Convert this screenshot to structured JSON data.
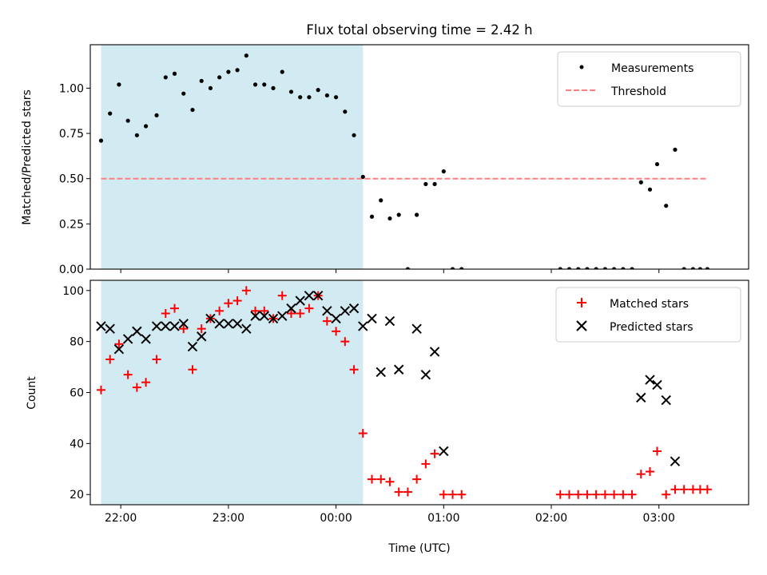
{
  "chart_data": [
    {
      "type": "scatter",
      "title": "Flux total observing time = 2.42 h",
      "xlabel": "",
      "ylabel": "Matched/Predicted stars",
      "xlim": [
        "21:43",
        "03:50"
      ],
      "ylim": [
        0,
        1.24
      ],
      "yticks": [
        0.0,
        0.25,
        0.5,
        0.75,
        1.0
      ],
      "ytick_labels": [
        "0.00",
        "0.25",
        "0.50",
        "0.75",
        "1.00"
      ],
      "xticks": [
        "22:00",
        "23:00",
        "00:00",
        "01:00",
        "02:00",
        "03:00"
      ],
      "xtick_labels_shown": false,
      "grid": false,
      "legend_position": "top-right",
      "shaded_interval": {
        "from": "21:49",
        "to": "00:15",
        "color": "#add8e6"
      },
      "threshold": {
        "name": "Threshold",
        "value": 0.5,
        "from": "21:49",
        "to": "03:27",
        "color": "#ff7f7f",
        "style": "dashed"
      },
      "series": [
        {
          "name": "Measurements",
          "color": "#000000",
          "marker": "dot",
          "points": [
            [
              "21:49",
              0.71
            ],
            [
              "21:54",
              0.86
            ],
            [
              "21:59",
              1.02
            ],
            [
              "22:04",
              0.82
            ],
            [
              "22:09",
              0.74
            ],
            [
              "22:14",
              0.79
            ],
            [
              "22:20",
              0.85
            ],
            [
              "22:25",
              1.06
            ],
            [
              "22:30",
              1.08
            ],
            [
              "22:35",
              0.97
            ],
            [
              "22:40",
              0.88
            ],
            [
              "22:45",
              1.04
            ],
            [
              "22:50",
              1.0
            ],
            [
              "22:55",
              1.06
            ],
            [
              "23:00",
              1.09
            ],
            [
              "23:05",
              1.1
            ],
            [
              "23:10",
              1.18
            ],
            [
              "23:15",
              1.02
            ],
            [
              "23:20",
              1.02
            ],
            [
              "23:25",
              1.0
            ],
            [
              "23:30",
              1.09
            ],
            [
              "23:35",
              0.98
            ],
            [
              "23:40",
              0.95
            ],
            [
              "23:45",
              0.95
            ],
            [
              "23:50",
              0.99
            ],
            [
              "23:55",
              0.96
            ],
            [
              "00:00",
              0.95
            ],
            [
              "00:05",
              0.87
            ],
            [
              "00:10",
              0.74
            ],
            [
              "00:15",
              0.51
            ],
            [
              "00:20",
              0.29
            ],
            [
              "00:25",
              0.38
            ],
            [
              "00:30",
              0.28
            ],
            [
              "00:35",
              0.3
            ],
            [
              "00:40",
              0.0
            ],
            [
              "00:45",
              0.3
            ],
            [
              "00:50",
              0.47
            ],
            [
              "00:55",
              0.47
            ],
            [
              "01:00",
              0.54
            ],
            [
              "01:05",
              0.0
            ],
            [
              "01:10",
              0.0
            ],
            [
              "02:05",
              0.0
            ],
            [
              "02:10",
              0.0
            ],
            [
              "02:15",
              0.0
            ],
            [
              "02:20",
              0.0
            ],
            [
              "02:25",
              0.0
            ],
            [
              "02:30",
              0.0
            ],
            [
              "02:35",
              0.0
            ],
            [
              "02:40",
              0.0
            ],
            [
              "02:45",
              0.0
            ],
            [
              "02:50",
              0.48
            ],
            [
              "02:55",
              0.44
            ],
            [
              "02:59",
              0.58
            ],
            [
              "03:04",
              0.35
            ],
            [
              "03:09",
              0.66
            ],
            [
              "03:14",
              0.0
            ],
            [
              "03:19",
              0.0
            ],
            [
              "03:23",
              0.0
            ],
            [
              "03:27",
              0.0
            ]
          ]
        }
      ]
    },
    {
      "type": "scatter",
      "title": "",
      "xlabel": "Time (UTC)",
      "ylabel": "Count",
      "xlim": [
        "21:43",
        "03:50"
      ],
      "ylim": [
        16,
        104
      ],
      "yticks": [
        20,
        40,
        60,
        80,
        100
      ],
      "ytick_labels": [
        "20",
        "40",
        "60",
        "80",
        "100"
      ],
      "xticks": [
        "22:00",
        "23:00",
        "00:00",
        "01:00",
        "02:00",
        "03:00"
      ],
      "xtick_labels": [
        "22:00",
        "23:00",
        "00:00",
        "01:00",
        "02:00",
        "03:00"
      ],
      "grid": false,
      "legend_position": "top-right",
      "shaded_interval": {
        "from": "21:49",
        "to": "00:15",
        "color": "#add8e6"
      },
      "series": [
        {
          "name": "Matched stars",
          "color": "#ff0000",
          "marker": "plus",
          "points": [
            [
              "21:49",
              61
            ],
            [
              "21:54",
              73
            ],
            [
              "21:59",
              79
            ],
            [
              "22:04",
              67
            ],
            [
              "22:09",
              62
            ],
            [
              "22:14",
              64
            ],
            [
              "22:20",
              73
            ],
            [
              "22:25",
              91
            ],
            [
              "22:30",
              93
            ],
            [
              "22:35",
              85
            ],
            [
              "22:40",
              69
            ],
            [
              "22:45",
              85
            ],
            [
              "22:50",
              89
            ],
            [
              "22:55",
              92
            ],
            [
              "23:00",
              95
            ],
            [
              "23:05",
              96
            ],
            [
              "23:10",
              100
            ],
            [
              "23:15",
              92
            ],
            [
              "23:20",
              92
            ],
            [
              "23:25",
              89
            ],
            [
              "23:30",
              98
            ],
            [
              "23:35",
              91
            ],
            [
              "23:40",
              91
            ],
            [
              "23:45",
              93
            ],
            [
              "23:50",
              98
            ],
            [
              "23:55",
              88
            ],
            [
              "00:00",
              84
            ],
            [
              "00:05",
              80
            ],
            [
              "00:10",
              69
            ],
            [
              "00:15",
              44
            ],
            [
              "00:20",
              26
            ],
            [
              "00:25",
              26
            ],
            [
              "00:30",
              25
            ],
            [
              "00:35",
              21
            ],
            [
              "00:40",
              21
            ],
            [
              "00:45",
              26
            ],
            [
              "00:50",
              32
            ],
            [
              "00:55",
              36
            ],
            [
              "01:00",
              20
            ],
            [
              "01:05",
              20
            ],
            [
              "01:10",
              20
            ],
            [
              "02:05",
              20
            ],
            [
              "02:10",
              20
            ],
            [
              "02:15",
              20
            ],
            [
              "02:20",
              20
            ],
            [
              "02:25",
              20
            ],
            [
              "02:30",
              20
            ],
            [
              "02:35",
              20
            ],
            [
              "02:40",
              20
            ],
            [
              "02:45",
              20
            ],
            [
              "02:50",
              28
            ],
            [
              "02:55",
              29
            ],
            [
              "02:59",
              37
            ],
            [
              "03:04",
              20
            ],
            [
              "03:09",
              22
            ],
            [
              "03:14",
              22
            ],
            [
              "03:19",
              22
            ],
            [
              "03:23",
              22
            ],
            [
              "03:27",
              22
            ]
          ]
        },
        {
          "name": "Predicted stars",
          "color": "#000000",
          "marker": "x",
          "points": [
            [
              "21:49",
              86
            ],
            [
              "21:54",
              85
            ],
            [
              "21:59",
              77
            ],
            [
              "22:04",
              81
            ],
            [
              "22:09",
              84
            ],
            [
              "22:14",
              81
            ],
            [
              "22:20",
              86
            ],
            [
              "22:25",
              86
            ],
            [
              "22:30",
              86
            ],
            [
              "22:35",
              87
            ],
            [
              "22:40",
              78
            ],
            [
              "22:45",
              82
            ],
            [
              "22:50",
              89
            ],
            [
              "22:55",
              87
            ],
            [
              "23:00",
              87
            ],
            [
              "23:05",
              87
            ],
            [
              "23:10",
              85
            ],
            [
              "23:15",
              90
            ],
            [
              "23:20",
              90
            ],
            [
              "23:25",
              89
            ],
            [
              "23:30",
              90
            ],
            [
              "23:35",
              93
            ],
            [
              "23:40",
              96
            ],
            [
              "23:45",
              98
            ],
            [
              "23:50",
              98
            ],
            [
              "23:55",
              92
            ],
            [
              "00:00",
              89
            ],
            [
              "00:05",
              92
            ],
            [
              "00:10",
              93
            ],
            [
              "00:15",
              86
            ],
            [
              "00:20",
              89
            ],
            [
              "00:25",
              68
            ],
            [
              "00:30",
              88
            ],
            [
              "00:35",
              69
            ],
            [
              "00:45",
              85
            ],
            [
              "00:50",
              67
            ],
            [
              "00:55",
              76
            ],
            [
              "01:00",
              37
            ],
            [
              "02:50",
              58
            ],
            [
              "02:55",
              65
            ],
            [
              "02:59",
              63
            ],
            [
              "03:04",
              57
            ],
            [
              "03:09",
              33
            ]
          ]
        }
      ]
    }
  ]
}
